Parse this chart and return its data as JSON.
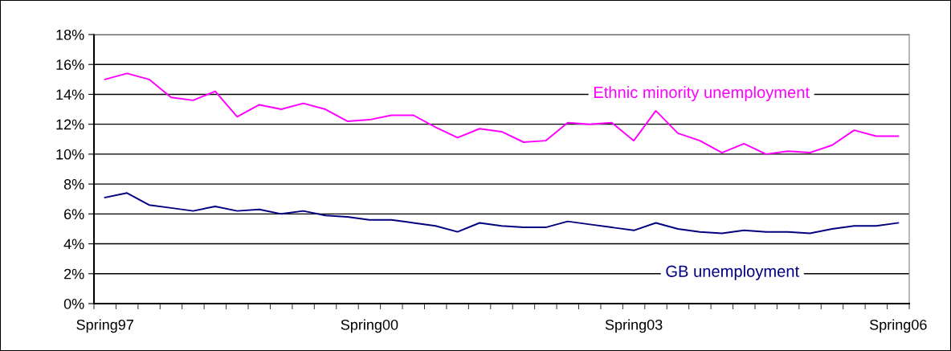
{
  "chart_data": {
    "type": "line",
    "categories": [
      "Spring97",
      null,
      null,
      null,
      null,
      null,
      null,
      null,
      null,
      null,
      null,
      null,
      "Spring00",
      null,
      null,
      null,
      null,
      null,
      null,
      null,
      null,
      null,
      null,
      null,
      "Spring03",
      null,
      null,
      null,
      null,
      null,
      null,
      null,
      null,
      null,
      null,
      null,
      "Spring06"
    ],
    "series": [
      {
        "name": "Ethnic minority unemployment",
        "color": "#ff00ff",
        "values": [
          15.0,
          15.4,
          15.0,
          13.8,
          13.6,
          14.2,
          12.5,
          13.3,
          13.0,
          13.4,
          13.0,
          12.2,
          12.3,
          12.6,
          12.6,
          11.8,
          11.1,
          11.7,
          11.5,
          10.8,
          10.9,
          12.1,
          12.0,
          12.1,
          10.9,
          12.9,
          11.4,
          10.9,
          10.1,
          10.7,
          10.0,
          10.2,
          10.1,
          10.6,
          11.6,
          11.2,
          11.2
        ]
      },
      {
        "name": "GB unemployment",
        "color": "#000080",
        "values": [
          7.1,
          7.4,
          6.6,
          6.4,
          6.2,
          6.5,
          6.2,
          6.3,
          6.0,
          6.2,
          5.9,
          5.8,
          5.6,
          5.6,
          5.4,
          5.2,
          4.8,
          5.4,
          5.2,
          5.1,
          5.1,
          5.5,
          5.3,
          5.1,
          4.9,
          5.4,
          5.0,
          4.8,
          4.7,
          4.9,
          4.8,
          4.8,
          4.7,
          5.0,
          5.2,
          5.2,
          5.4
        ]
      }
    ],
    "ylim": [
      0,
      18
    ],
    "yticks": [
      {
        "value": 0,
        "label": "0%"
      },
      {
        "value": 2,
        "label": "2%"
      },
      {
        "value": 4,
        "label": "4%"
      },
      {
        "value": 6,
        "label": "6%"
      },
      {
        "value": 8,
        "label": "8%"
      },
      {
        "value": 10,
        "label": "10%"
      },
      {
        "value": 12,
        "label": "12%"
      },
      {
        "value": 14,
        "label": "14%"
      },
      {
        "value": 16,
        "label": "16%"
      },
      {
        "value": 18,
        "label": "18%"
      }
    ],
    "grid": "y",
    "legend": false,
    "marker": "none",
    "line_style": "solid"
  }
}
